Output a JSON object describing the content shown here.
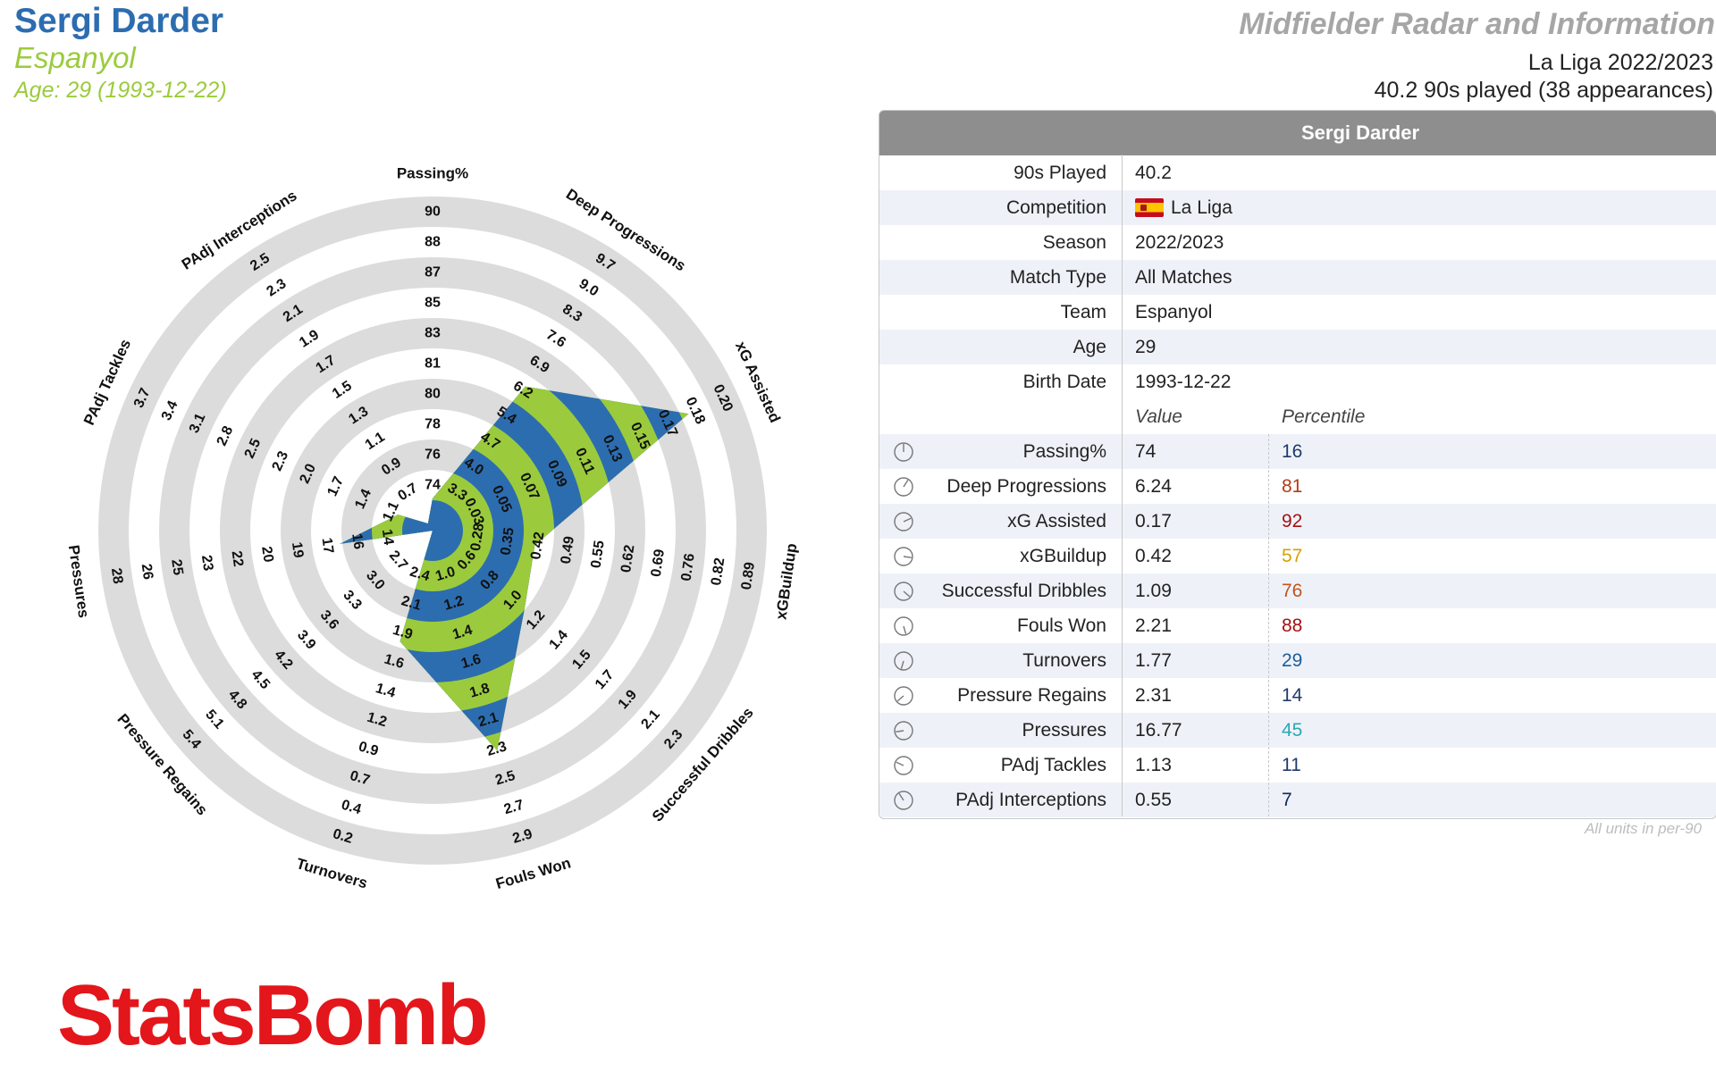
{
  "header": {
    "player_name": "Sergi Darder",
    "team": "Espanyol",
    "age_line": "Age: 29 (1993-12-22)",
    "report_title": "Midfielder Radar and Information",
    "league_season": "La Liga 2022/2023",
    "played": "40.2 90s played (38 appearances)"
  },
  "colors": {
    "blue": "#2c6db0",
    "green": "#9bcb3c",
    "ring_grey": "#dcdcdc",
    "logo_red": "#e3161b"
  },
  "chart_data": {
    "type": "radar",
    "rings": 10,
    "metrics": [
      {
        "name": "Passing%",
        "ticks": [
          "74",
          "76",
          "78",
          "80",
          "81",
          "83",
          "85",
          "87",
          "88",
          "90"
        ],
        "range": [
          72.3,
          90.0
        ],
        "value": 74
      },
      {
        "name": "Deep Progressions",
        "ticks": [
          "3.3",
          "4.0",
          "4.7",
          "5.4",
          "6.2",
          "6.9",
          "7.6",
          "8.3",
          "9.0",
          "9.7"
        ],
        "range": [
          2.6,
          9.7
        ],
        "value": 6.24
      },
      {
        "name": "xG Assisted",
        "ticks": [
          "0.03",
          "0.05",
          "0.07",
          "0.09",
          "0.11",
          "0.13",
          "0.15",
          "0.17",
          "0.18",
          "0.20"
        ],
        "range": [
          0.01,
          0.2
        ],
        "value": 0.17
      },
      {
        "name": "xGBuildup",
        "ticks": [
          "0.28",
          "0.35",
          "0.42",
          "0.49",
          "0.55",
          "0.62",
          "0.69",
          "0.76",
          "0.82",
          "0.89"
        ],
        "range": [
          0.21,
          0.89
        ],
        "value": 0.42
      },
      {
        "name": "Successful Dribbles",
        "ticks": [
          "0.6",
          "0.8",
          "1.0",
          "1.2",
          "1.4",
          "1.5",
          "1.7",
          "1.9",
          "2.1",
          "2.3"
        ],
        "range": [
          0.4,
          2.3
        ],
        "value": 1.09
      },
      {
        "name": "Fouls Won",
        "ticks": [
          "1.0",
          "1.2",
          "1.4",
          "1.6",
          "1.8",
          "2.1",
          "2.3",
          "2.5",
          "2.7",
          "2.9"
        ],
        "range": [
          0.7,
          2.9
        ],
        "value": 2.21
      },
      {
        "name": "Turnovers",
        "ticks": [
          "2.4",
          "2.1",
          "1.9",
          "1.6",
          "1.4",
          "1.2",
          "0.9",
          "0.7",
          "0.4",
          "0.2"
        ],
        "range": [
          2.6,
          0.2
        ],
        "value": 1.77
      },
      {
        "name": "Pressure Regains",
        "ticks": [
          "2.7",
          "3.0",
          "3.3",
          "3.6",
          "3.9",
          "4.2",
          "4.5",
          "4.8",
          "5.1",
          "5.4"
        ],
        "range": [
          2.4,
          5.4
        ],
        "value": 2.31
      },
      {
        "name": "Pressures",
        "ticks": [
          "14",
          "16",
          "17",
          "19",
          "20",
          "22",
          "23",
          "25",
          "26",
          "28"
        ],
        "range": [
          12.4,
          28.0
        ],
        "value": 16.77
      },
      {
        "name": "PAdj Tackles",
        "ticks": [
          "1.1",
          "1.4",
          "1.7",
          "2.0",
          "2.3",
          "2.5",
          "2.8",
          "3.1",
          "3.4",
          "3.7"
        ],
        "range": [
          0.8,
          3.7
        ],
        "value": 1.13
      },
      {
        "name": "PAdj Interceptions",
        "ticks": [
          "0.7",
          "0.9",
          "1.1",
          "1.3",
          "1.5",
          "1.7",
          "1.9",
          "2.1",
          "2.3",
          "2.5"
        ],
        "range": [
          0.5,
          2.5
        ],
        "value": 0.55
      }
    ]
  },
  "table": {
    "header": "Sergi Darder",
    "info_rows": [
      {
        "label": "90s Played",
        "value": "40.2"
      },
      {
        "label": "Competition",
        "value": "La Liga",
        "flag": "spain-flag-icon"
      },
      {
        "label": "Season",
        "value": "2022/2023"
      },
      {
        "label": "Match Type",
        "value": "All Matches"
      },
      {
        "label": "Team",
        "value": "Espanyol"
      },
      {
        "label": "Age",
        "value": "29"
      },
      {
        "label": "Birth Date",
        "value": "1993-12-22"
      }
    ],
    "col_value": "Value",
    "col_percentile": "Percentile",
    "stat_rows": [
      {
        "label": "Passing%",
        "value": "74",
        "percentile": "16",
        "color": "#1f3a6e",
        "icon": "pie-clock-icon"
      },
      {
        "label": "Deep Progressions",
        "value": "6.24",
        "percentile": "81",
        "color": "#b53a16",
        "icon": "pie-clock-icon"
      },
      {
        "label": "xG Assisted",
        "value": "0.17",
        "percentile": "92",
        "color": "#a31212",
        "icon": "pie-clock-icon"
      },
      {
        "label": "xGBuildup",
        "value": "0.42",
        "percentile": "57",
        "color": "#d9a000",
        "icon": "pie-clock-icon"
      },
      {
        "label": "Successful Dribbles",
        "value": "1.09",
        "percentile": "76",
        "color": "#c2541c",
        "icon": "pie-clock-icon"
      },
      {
        "label": "Fouls Won",
        "value": "2.21",
        "percentile": "88",
        "color": "#a31212",
        "icon": "pie-clock-icon"
      },
      {
        "label": "Turnovers",
        "value": "1.77",
        "percentile": "29",
        "color": "#1f5d99",
        "icon": "pie-clock-icon"
      },
      {
        "label": "Pressure Regains",
        "value": "2.31",
        "percentile": "14",
        "color": "#1f3a6e",
        "icon": "pie-clock-icon"
      },
      {
        "label": "Pressures",
        "value": "16.77",
        "percentile": "45",
        "color": "#2aa8b8",
        "icon": "pie-clock-icon"
      },
      {
        "label": "PAdj Tackles",
        "value": "1.13",
        "percentile": "11",
        "color": "#1f3a6e",
        "icon": "pie-clock-icon"
      },
      {
        "label": "PAdj Interceptions",
        "value": "0.55",
        "percentile": "7",
        "color": "#14265a",
        "icon": "pie-clock-icon"
      }
    ],
    "note": "All units in per-90"
  },
  "logo": {
    "text": "StatsBomb"
  }
}
